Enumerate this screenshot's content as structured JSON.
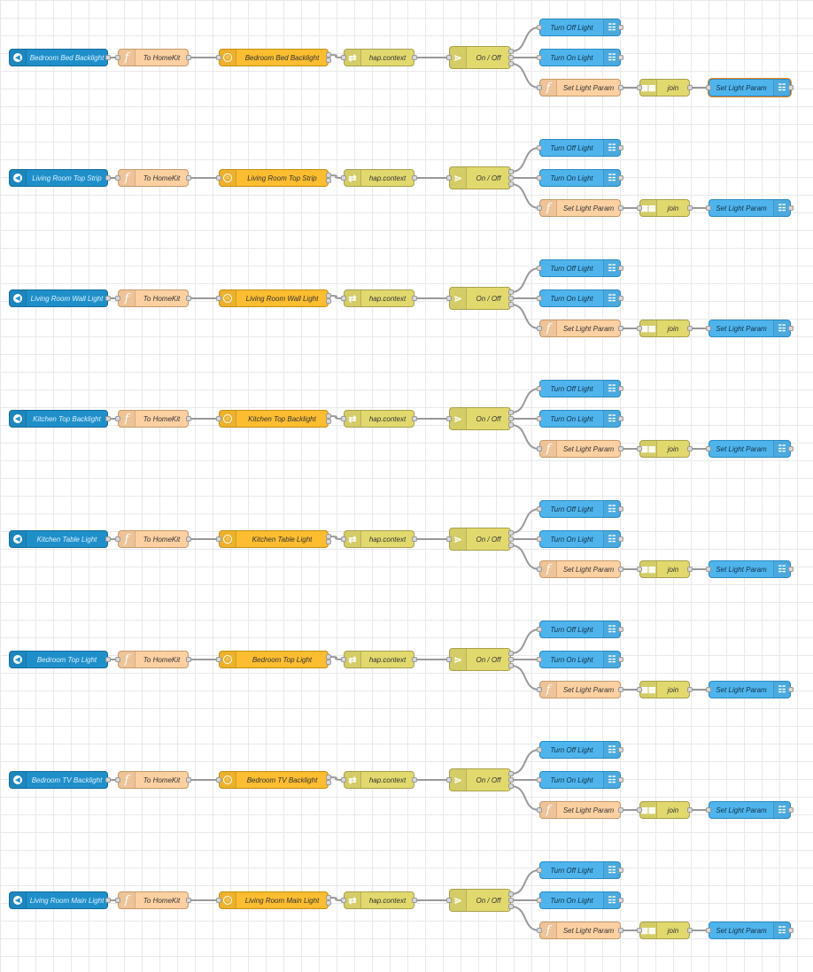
{
  "flows": [
    {
      "source": "Bedroom Bed Backlight",
      "accessory": "Bedroom Bed Backlight",
      "highlighted_output": true
    },
    {
      "source": "Living Room Top Strip",
      "accessory": "Living Room Top Strip",
      "highlighted_output": false
    },
    {
      "source": "Living Room Wall Light",
      "accessory": "Living Room Wall Light",
      "highlighted_output": false
    },
    {
      "source": "Kitchen Top Backlight",
      "accessory": "Kitchen Top Backlight",
      "highlighted_output": false
    },
    {
      "source": "Kitchen Table Light",
      "accessory": "Kitchen Table Light",
      "highlighted_output": false
    },
    {
      "source": "Bedroom Top Light",
      "accessory": "Bedroom Top Light",
      "highlighted_output": false
    },
    {
      "source": "Bedroom TV Backlight",
      "accessory": "Bedroom TV Backlight",
      "highlighted_output": false
    },
    {
      "source": "Living Room Main Light",
      "accessory": "Living Room Main Light",
      "highlighted_output": false
    }
  ],
  "labels": {
    "to_homekit": "To HomeKit",
    "change": "hap.context",
    "switch": "On / Off",
    "turn_off": "Turn Off Light",
    "turn_on": "Turn On Light",
    "set_param": "Set Light Param",
    "join": "join",
    "set_param_out": "Set Light Param"
  },
  "icons": {
    "inject": "mqtt-in-icon",
    "function": "function-icon",
    "homekit": "homekit-icon",
    "change": "change-icon",
    "switch": "switch-icon",
    "join": "join-icon",
    "output": "mqtt-out-icon"
  },
  "colors": {
    "input": "#1f8fc9",
    "function": "#fdd0a2",
    "homekit": "#fcbd30",
    "change": "#e2d96e",
    "output": "#4fb4ec",
    "wire": "#999999",
    "highlight": "#ff7f0e"
  }
}
